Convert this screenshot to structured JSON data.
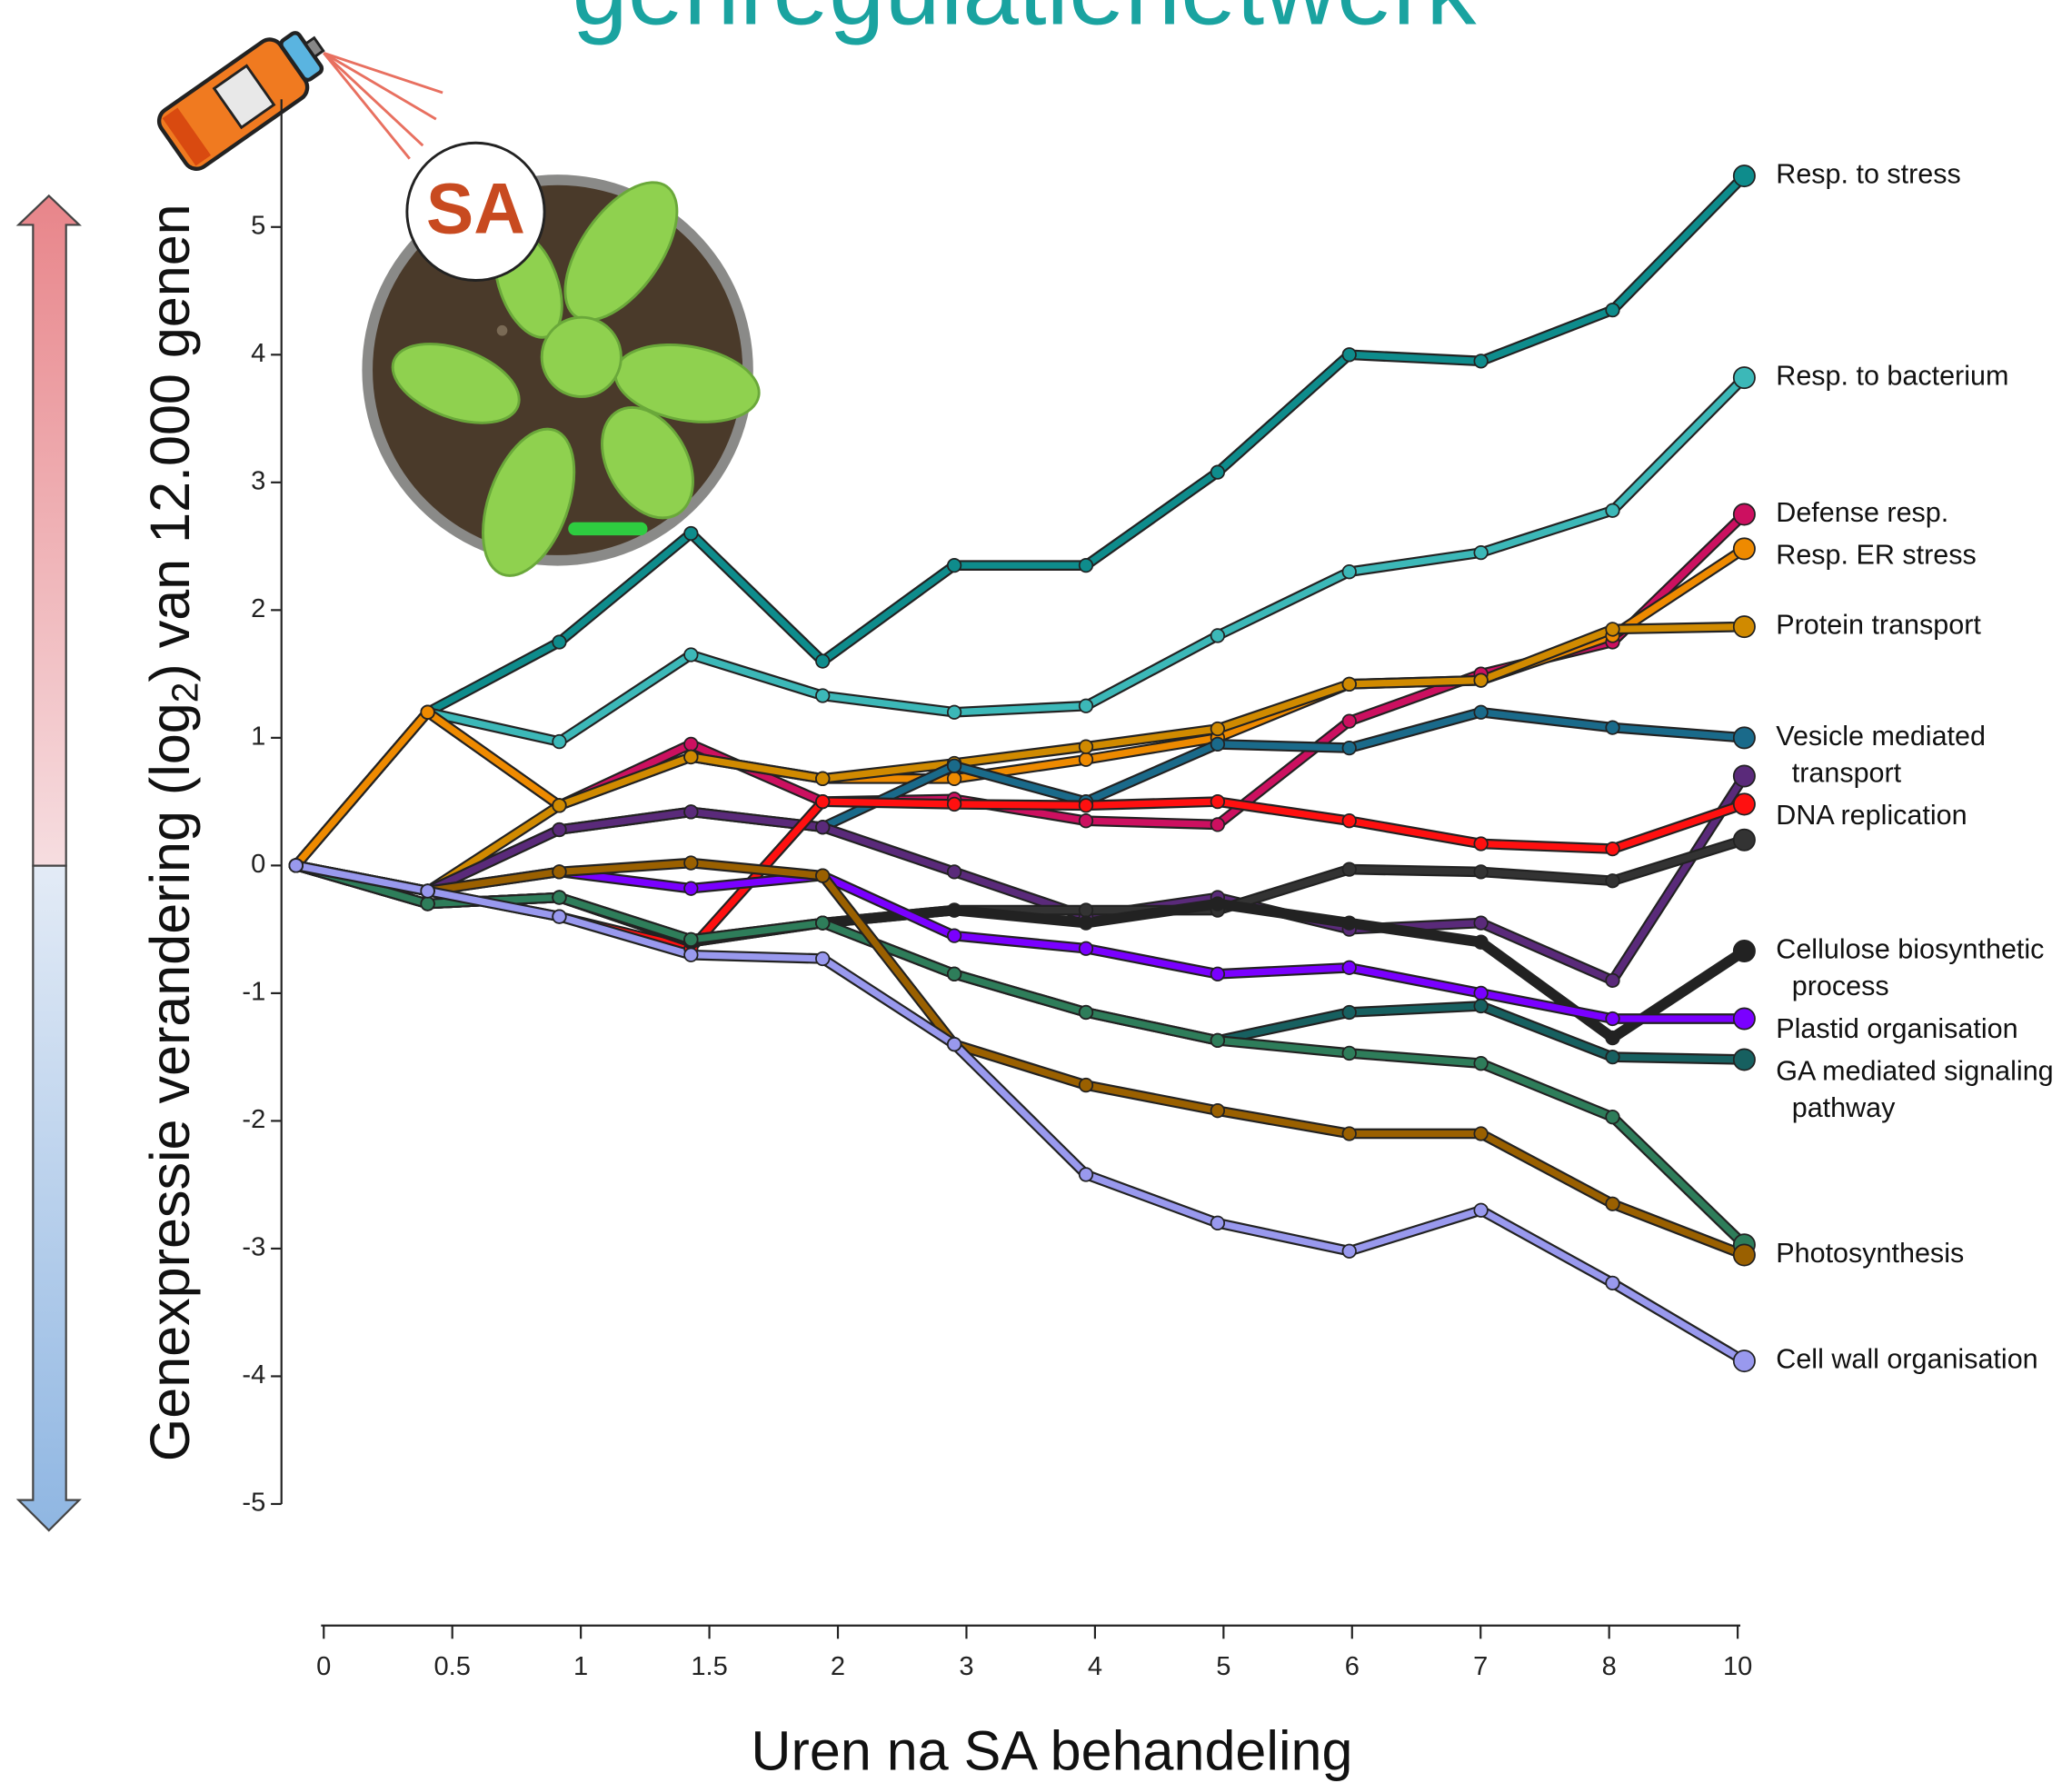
{
  "chart_data": {
    "type": "line",
    "title": "genregulatienetwerk",
    "badge": "SA",
    "y_label": {
      "before": "Genexpressie verandering (log",
      "sub": "2",
      "after": ") van 12.000 genen"
    },
    "x_label": "Uren na SA behandeling",
    "categories": [
      "0",
      "0.5",
      "1",
      "1.5",
      "2",
      "3",
      "4",
      "5",
      "6",
      "7",
      "8",
      "10"
    ],
    "ylim": [
      -5,
      6
    ],
    "yticks": [
      -5,
      -4,
      -3,
      -2,
      -1,
      0,
      1,
      2,
      3,
      4,
      5
    ],
    "series": [
      {
        "name": "Resp. to stress",
        "color": "#0e8c8c",
        "values": [
          0,
          1.2,
          1.75,
          2.6,
          1.6,
          2.35,
          2.35,
          3.08,
          4.0,
          3.95,
          4.35,
          5.4
        ]
      },
      {
        "name": "Resp. to bacterium",
        "color": "#3cb8b8",
        "values": [
          0,
          1.2,
          0.97,
          1.65,
          1.33,
          1.2,
          1.25,
          1.8,
          2.3,
          2.45,
          2.78,
          3.82
        ]
      },
      {
        "name": "Defense resp.",
        "color": "#cc1060",
        "values": [
          0,
          1.2,
          0.47,
          0.95,
          0.5,
          0.52,
          0.35,
          0.32,
          1.13,
          1.5,
          1.75,
          2.75
        ]
      },
      {
        "name": "Resp. ER stress",
        "color": "#ee8a00",
        "values": [
          0,
          1.2,
          0.47,
          0.85,
          0.68,
          0.68,
          0.83,
          1.0,
          1.42,
          1.45,
          1.8,
          2.48
        ]
      },
      {
        "name": "Protein transport",
        "color": "#d08a00",
        "values": [
          0,
          -0.2,
          0.47,
          0.85,
          0.68,
          0.8,
          0.93,
          1.07,
          1.42,
          1.45,
          1.85,
          1.87
        ]
      },
      {
        "name": "Vesicle mediated transport",
        "color": "#1a6a8a",
        "values": [
          0,
          -0.2,
          0.28,
          0.42,
          0.3,
          0.78,
          0.5,
          0.95,
          0.92,
          1.2,
          1.08,
          1.0
        ]
      },
      {
        "name": "DNA replication",
        "color": "#5a2a7a",
        "values": [
          0,
          -0.2,
          0.28,
          0.42,
          0.3,
          -0.05,
          -0.4,
          -0.25,
          -0.5,
          -0.45,
          -0.9,
          0.7
        ]
      },
      {
        "color": "#ff1010",
        "values": [
          0,
          -0.2,
          -0.4,
          -0.65,
          0.5,
          0.48,
          0.47,
          0.5,
          0.35,
          0.17,
          0.13,
          0.48
        ]
      },
      {
        "color": "#333333",
        "values": [
          0,
          -0.3,
          -0.25,
          -0.6,
          -0.45,
          -0.35,
          -0.35,
          -0.35,
          -0.03,
          -0.05,
          -0.12,
          0.2
        ]
      },
      {
        "name": "Cellulose biosynthetic process",
        "color": "#222222",
        "values": [
          0,
          -0.3,
          -0.25,
          -0.6,
          -0.45,
          -0.35,
          -0.45,
          -0.3,
          -0.45,
          -0.6,
          -1.35,
          -0.67
        ]
      },
      {
        "name": "Plastid organisation",
        "color": "#7a00ff",
        "values": [
          0,
          -0.2,
          -0.05,
          -0.18,
          -0.08,
          -0.55,
          -0.65,
          -0.85,
          -0.8,
          -1.0,
          -1.2,
          -1.2
        ]
      },
      {
        "name": "GA mediated signaling pathway",
        "color": "#176060",
        "values": [
          0,
          -0.3,
          -0.25,
          -0.58,
          -0.45,
          -0.85,
          -1.15,
          -1.37,
          -1.15,
          -1.1,
          -1.5,
          -1.52
        ]
      },
      {
        "color": "#2e7d5a",
        "values": [
          0,
          -0.3,
          -0.25,
          -0.58,
          -0.45,
          -0.85,
          -1.15,
          -1.37,
          -1.47,
          -1.55,
          -1.97,
          -2.97
        ]
      },
      {
        "name": "Photosynthesis",
        "color": "#9a6000",
        "values": [
          0,
          -0.2,
          -0.05,
          0.02,
          -0.08,
          -1.4,
          -1.72,
          -1.92,
          -2.1,
          -2.1,
          -2.65,
          -3.05
        ]
      },
      {
        "name": "Cell wall organisation",
        "color": "#9999ee",
        "values": [
          0,
          -0.2,
          -0.4,
          -0.7,
          -0.73,
          -1.4,
          -2.42,
          -2.8,
          -3.02,
          -2.7,
          -3.27,
          -3.88
        ]
      }
    ]
  }
}
